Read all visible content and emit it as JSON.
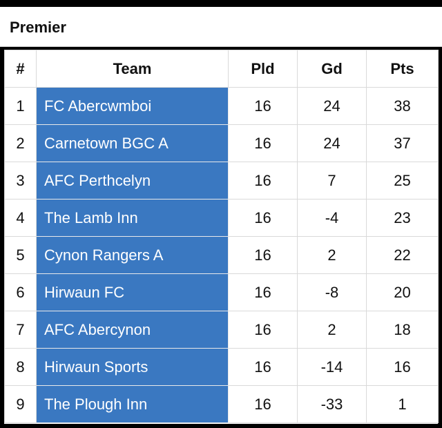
{
  "title": "Premier",
  "table": {
    "headers": {
      "rank": "#",
      "team": "Team",
      "pld": "Pld",
      "gd": "Gd",
      "pts": "Pts"
    },
    "rows": [
      {
        "rank": "1",
        "team": "FC Abercwmboi",
        "pld": "16",
        "gd": "24",
        "pts": "38"
      },
      {
        "rank": "2",
        "team": "Carnetown BGC A",
        "pld": "16",
        "gd": "24",
        "pts": "37"
      },
      {
        "rank": "3",
        "team": "AFC Perthcelyn",
        "pld": "16",
        "gd": "7",
        "pts": "25"
      },
      {
        "rank": "4",
        "team": "The Lamb Inn",
        "pld": "16",
        "gd": "-4",
        "pts": "23"
      },
      {
        "rank": "5",
        "team": "Cynon Rangers A",
        "pld": "16",
        "gd": "2",
        "pts": "22"
      },
      {
        "rank": "6",
        "team": "Hirwaun FC",
        "pld": "16",
        "gd": "-8",
        "pts": "20"
      },
      {
        "rank": "7",
        "team": "AFC Abercynon",
        "pld": "16",
        "gd": "2",
        "pts": "18"
      },
      {
        "rank": "8",
        "team": "Hirwaun Sports",
        "pld": "16",
        "gd": "-14",
        "pts": "16"
      },
      {
        "rank": "9",
        "team": "The Plough Inn",
        "pld": "16",
        "gd": "-33",
        "pts": "1"
      }
    ]
  },
  "colors": {
    "team_cell_background": "#3a78c1",
    "team_cell_text": "#ffffff",
    "frame_background": "#000000"
  }
}
